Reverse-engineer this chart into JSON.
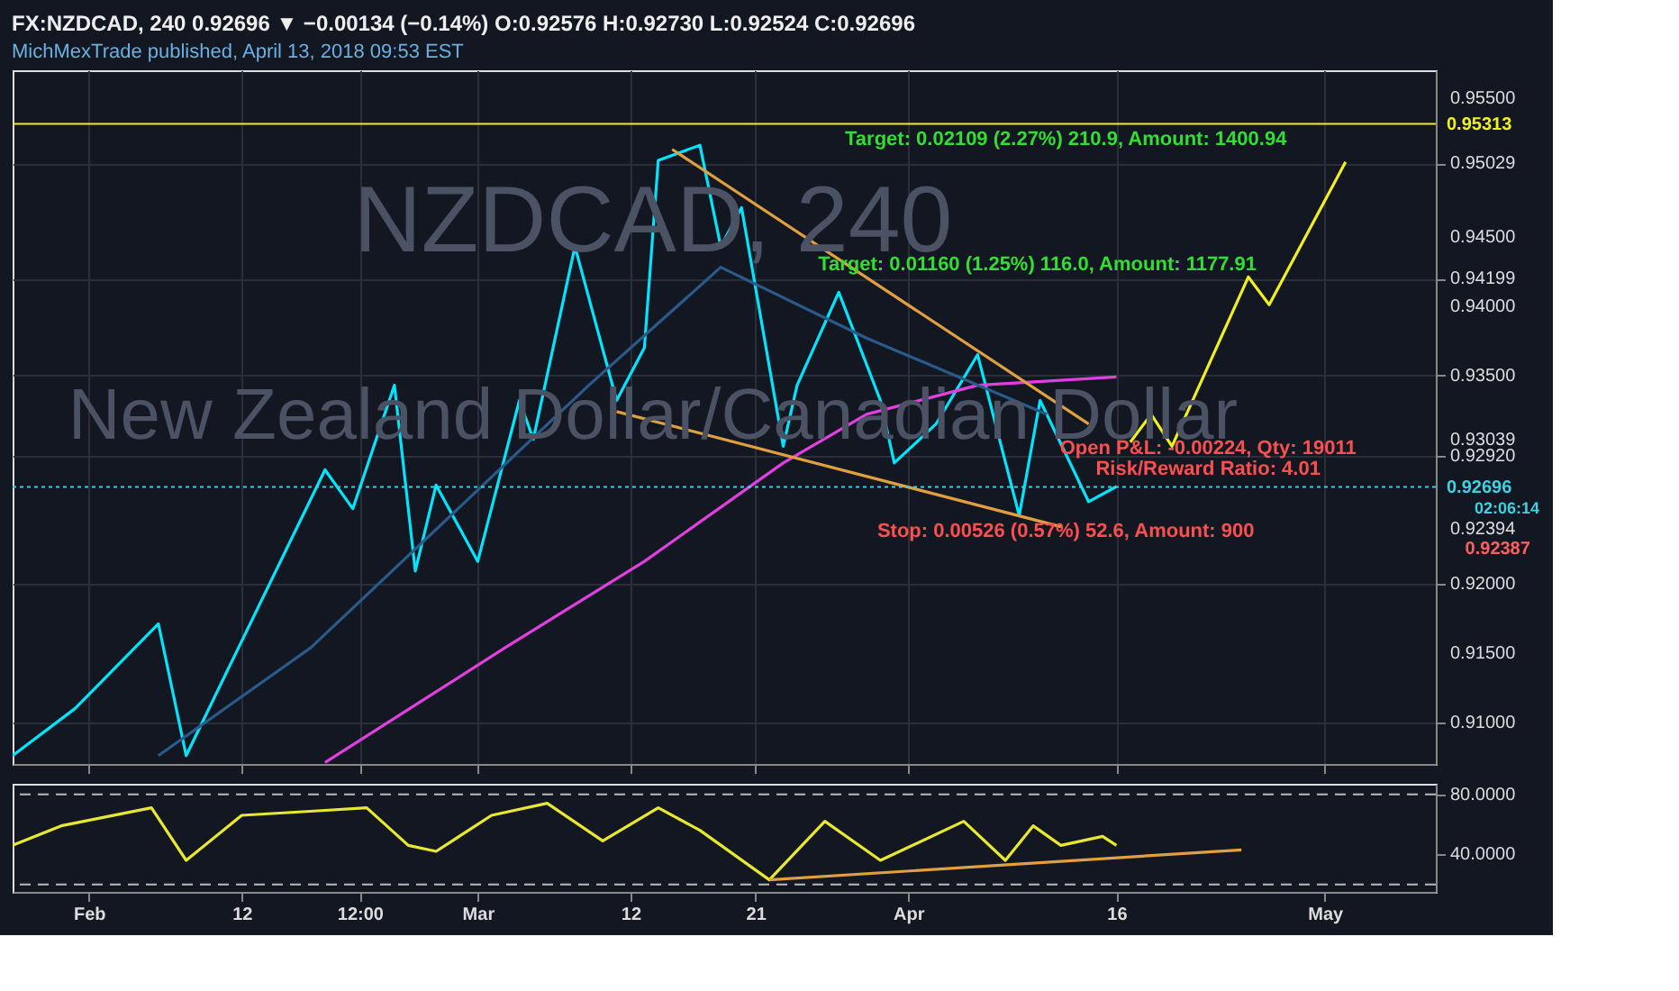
{
  "chart_data": [
    {
      "type": "line",
      "title": "FX:NZDCAD, 240  0.92696 ▼ −0.00134 (−0.14%)  O:0.92576  H:0.92730  L:0.92524  C:0.92696",
      "subtitle": "MichMexTrade published, April 13, 2018 09:53 EST",
      "xlim": [
        "2018-01-26T12:00",
        "2018-05-09"
      ],
      "xticks": [
        {
          "value": "2018-02-01",
          "label": null
        },
        {
          "value": "2018-02-12",
          "label": null
        },
        {
          "value": "2018-02-20T12:00",
          "label": null
        },
        {
          "value": "2018-03-01",
          "label": null
        },
        {
          "value": "2018-03-12",
          "label": null
        },
        {
          "value": "2018-03-21",
          "label": null
        },
        {
          "value": "2018-04-01",
          "label": null
        },
        {
          "value": "2018-04-16",
          "label": null
        },
        {
          "value": "2018-05-01",
          "label": null
        }
      ],
      "ylim": [
        0.907,
        0.957
      ],
      "yticks": [
        {
          "value": 0.91,
          "label": "0.91000"
        },
        {
          "value": 0.915,
          "label": "0.91500"
        },
        {
          "value": 0.92,
          "label": "0.92000"
        },
        {
          "value": 0.92394,
          "label": "0.92394"
        },
        {
          "value": 0.9292,
          "label": "0.92920"
        },
        {
          "value": 0.93039,
          "label": "0.93039"
        },
        {
          "value": 0.935,
          "label": "0.93500"
        },
        {
          "value": 0.94,
          "label": "0.94000"
        },
        {
          "value": 0.94199,
          "label": "0.94199"
        },
        {
          "value": 0.945,
          "label": "0.94500"
        },
        {
          "value": 0.95029,
          "label": "0.95029"
        },
        {
          "value": 0.955,
          "label": "0.95500"
        }
      ],
      "tick_labels": "y",
      "grid": true,
      "series": [
        {
          "color": "#00e5ff",
          "x": [
            "2018-01-26T12:00",
            "2018-01-31",
            "2018-02-06",
            "2018-02-08",
            "2018-02-11",
            "2018-02-18",
            "2018-02-20",
            "2018-02-23",
            "2018-02-24T12:00",
            "2018-02-26",
            "2018-03-01",
            "2018-03-04",
            "2018-03-05",
            "2018-03-08",
            "2018-03-11",
            "2018-03-13",
            "2018-03-14",
            "2018-03-17",
            "2018-03-18T12:00",
            "2018-03-20",
            "2018-03-23",
            "2018-03-24",
            "2018-03-27",
            "2018-03-30",
            "2018-03-31",
            "2018-04-03",
            "2018-04-06",
            "2018-04-09",
            "2018-04-10T12:00",
            "2018-04-14",
            "2018-04-16"
          ],
          "values": [
            0.9076,
            0.911,
            0.9171,
            0.9076,
            0.9138,
            0.9282,
            0.9254,
            0.9343,
            0.9209,
            0.9271,
            0.9216,
            0.9332,
            0.9304,
            0.9443,
            0.9332,
            0.937,
            0.9505,
            0.9516,
            0.9443,
            0.9471,
            0.9299,
            0.9343,
            0.941,
            0.9332,
            0.9287,
            0.9315,
            0.9365,
            0.9249,
            0.9332,
            0.9259,
            0.927
          ]
        },
        {
          "color": "#e040e0",
          "x": [
            "2018-02-18",
            "2018-03-03",
            "2018-03-13",
            "2018-03-23",
            "2018-03-29",
            "2018-04-06",
            "2018-04-16"
          ],
          "values": [
            0.9071,
            0.9154,
            0.9216,
            0.9287,
            0.9322,
            0.9343,
            0.9349
          ]
        },
        {
          "color": "#2a5a8a",
          "x": [
            "2018-02-06",
            "2018-02-17",
            "2018-03-09",
            "2018-03-18T12:00",
            "2018-03-29",
            "2018-04-11"
          ],
          "values": [
            0.9076,
            0.9154,
            0.9343,
            0.9428,
            0.9377,
            0.9322
          ]
        },
        {
          "color": "#e0a040",
          "x": [
            "2018-03-15",
            "2018-04-14"
          ],
          "values": [
            0.9513,
            0.9315
          ]
        },
        {
          "color": "#e0a040",
          "x": [
            "2018-03-11",
            "2018-04-12"
          ],
          "values": [
            0.9324,
            0.9241
          ]
        },
        {
          "color": "#f0f020",
          "x": [
            "2018-04-17",
            "2018-04-18T12:00",
            "2018-04-20",
            "2018-04-25T12:00",
            "2018-04-27",
            "2018-05-02T12:00"
          ],
          "values": [
            0.9302,
            0.9322,
            0.9299,
            0.9421,
            0.9401,
            0.9504
          ]
        }
      ],
      "ref_lines": [
        {
          "axis": "y",
          "value": 0.95313,
          "label": "0.95313",
          "color": "#f0f020",
          "line_style": "solid"
        },
        {
          "axis": "y",
          "value": 0.92696,
          "label": "0.92696",
          "color": "#40d0e0",
          "line_style": "dotted"
        }
      ],
      "annotations": [
        "NZDCAD, 240",
        "New Zealand Dollar/Canadian Dollar",
        "Target: 0.02109 (2.27%) 210.9, Amount: 1400.94",
        "Target: 0.01160 (1.25%) 116.0, Amount: 1177.91",
        "Open P&L: -0.00224, Qty: 19011",
        "Risk/Reward Ratio: 4.01",
        "Stop: 0.00526 (0.57%) 52.6, Amount: 900",
        "02:06:14",
        "0.92387"
      ]
    },
    {
      "type": "line",
      "xlim": [
        "2018-01-26T12:00",
        "2018-05-09"
      ],
      "xticks": [
        {
          "value": "2018-02-01",
          "label": "Feb"
        },
        {
          "value": "2018-02-12",
          "label": "12"
        },
        {
          "value": "2018-02-20T12:00",
          "label": "12:00"
        },
        {
          "value": "2018-03-01",
          "label": "Mar"
        },
        {
          "value": "2018-03-12",
          "label": "12"
        },
        {
          "value": "2018-03-21",
          "label": "21"
        },
        {
          "value": "2018-04-01",
          "label": "Apr"
        },
        {
          "value": "2018-04-16",
          "label": "16"
        },
        {
          "value": "2018-05-01",
          "label": "May"
        }
      ],
      "ylim": [
        15,
        87
      ],
      "yticks": [
        {
          "value": 40,
          "label": "40.0000"
        },
        {
          "value": 80,
          "label": "80.0000"
        }
      ],
      "series": [
        {
          "color": "#e8e830",
          "x": [
            "2018-01-26T12:00",
            "2018-01-30",
            "2018-02-05T12:00",
            "2018-02-08",
            "2018-02-12",
            "2018-02-17T12:00",
            "2018-02-21",
            "2018-02-24",
            "2018-02-26",
            "2018-03-02",
            "2018-03-06",
            "2018-03-10",
            "2018-03-14",
            "2018-03-17",
            "2018-03-22",
            "2018-03-26",
            "2018-03-30",
            "2018-04-05",
            "2018-04-08",
            "2018-04-10",
            "2018-04-12",
            "2018-04-15",
            "2018-04-16"
          ],
          "values": [
            46,
            59,
            71,
            36,
            66,
            69,
            71,
            46,
            42,
            66,
            74,
            49,
            71,
            56,
            23,
            62,
            36,
            62,
            36,
            59,
            46,
            52,
            46
          ]
        },
        {
          "color": "#e0a040",
          "x": [
            "2018-03-22",
            "2018-04-25"
          ],
          "values": [
            23,
            43
          ]
        }
      ],
      "ref_lines": [
        {
          "axis": "y",
          "value": 80,
          "color": "#bbbbbb",
          "line_style": "dashed"
        },
        {
          "axis": "y",
          "value": 20,
          "color": "#bbbbbb",
          "line_style": "dashed"
        }
      ]
    }
  ]
}
